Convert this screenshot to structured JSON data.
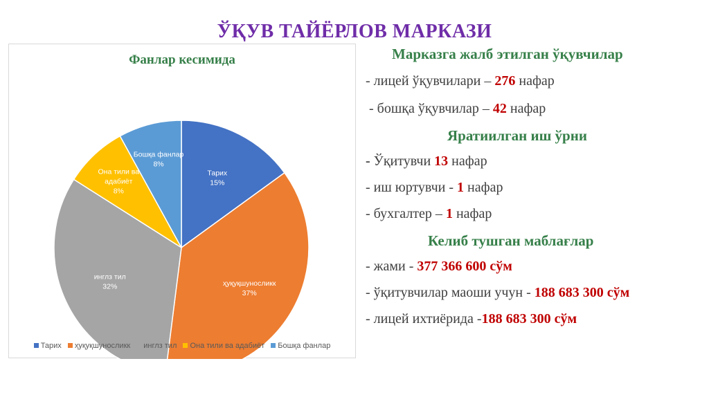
{
  "slide": {
    "title": "ЎҚУВ ТАЙЁРЛОВ МАРКАЗИ"
  },
  "chart_data": {
    "type": "pie",
    "title": "Фанлар кесимида",
    "categories": [
      "Тарих",
      "ҳуқуқшуносликк",
      "инглз тил",
      "Она тили ва адабиёт",
      "Бошқа фанлар"
    ],
    "legend_labels": [
      "Тарих",
      "ҳуқуқшуносликк",
      "инглз тил",
      "Она тили ва адабиёт",
      "Бошқа фанлар"
    ],
    "values": [
      15,
      37,
      32,
      8,
      8
    ],
    "value_labels": [
      "15%",
      "37%",
      "32%",
      "8%",
      "8%"
    ],
    "slice_labels": [
      [
        "Тарих"
      ],
      [
        "ҳуқуқшуносликк"
      ],
      [
        "инглз тил"
      ],
      [
        "Она тили ва",
        "адабиёт"
      ],
      [
        "Бошқа фанлар"
      ]
    ],
    "colors": [
      "#4472c4",
      "#ed7d31",
      "#a5a5a5",
      "#ffc000",
      "#5b9bd5"
    ],
    "legend_position": "bottom"
  },
  "info": {
    "heading1": "Марказга жалб этилган ўқувчилар",
    "line1": {
      "prefix": "- лицей ўқувчилари – ",
      "value": "276",
      "suffix": " нафар"
    },
    "line2": {
      "prefix": " - бошқа ўқувчилар – ",
      "value": "42",
      "suffix": " нафар"
    },
    "heading2": "Яратиилган иш ўрни",
    "line3": {
      "dash": "-",
      "prefix": " Ўқитувчи ",
      "value": "13",
      "suffix": " нафар"
    },
    "line4": {
      "prefix": "- иш юртувчи - ",
      "value": "1",
      "suffix": " нафар"
    },
    "line5": {
      "prefix": "- бухгалтер – ",
      "value": "1",
      "suffix": " нафар"
    },
    "heading3": "Келиб тушган маблағлар",
    "line6": {
      "prefix": "- жами - ",
      "value": "377 366 600 сўм"
    },
    "line7": {
      "prefix": "- ўқитувчилар маоши учун - ",
      "value": "188 683 300 сўм"
    },
    "line8": {
      "prefix": "- лицей ихтиёрида -",
      "value": "188 683 300 сўм"
    }
  }
}
